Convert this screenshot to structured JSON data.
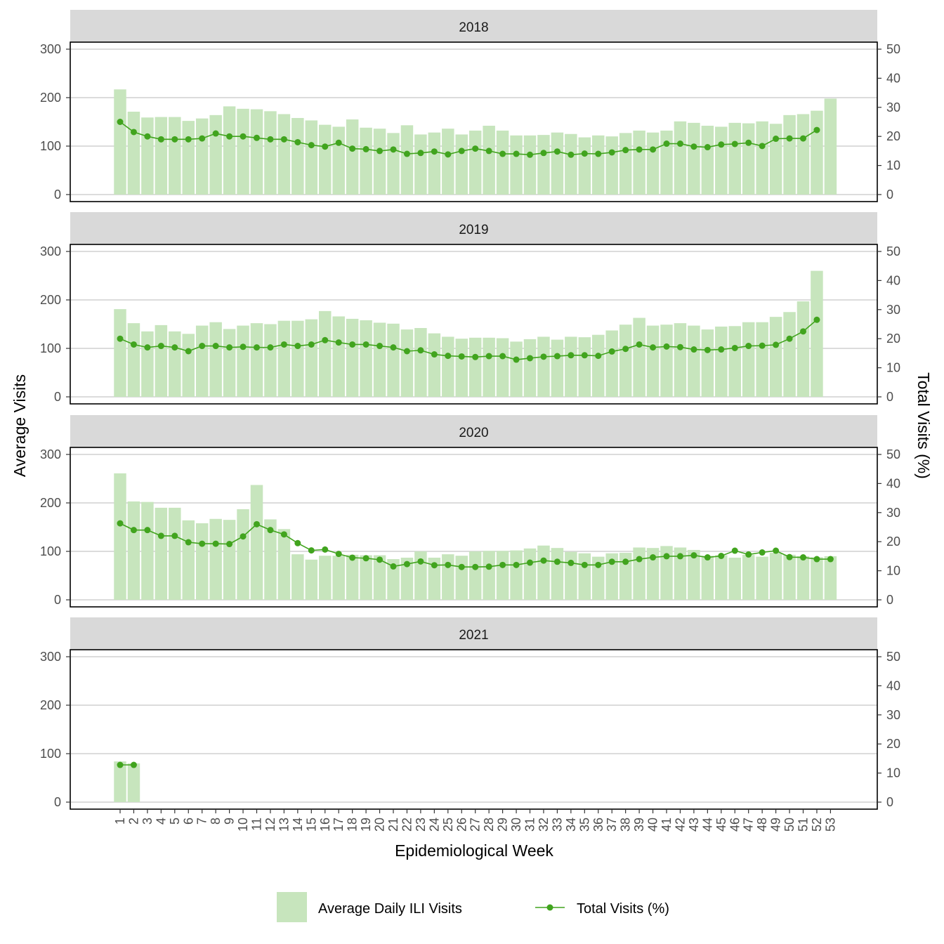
{
  "chart_data": {
    "type": "bar",
    "facet_by": "year",
    "xlabel": "Epidemiological Week",
    "ylabel": "Average Visits",
    "ylabel_right": "Total Visits (%)",
    "ylim": [
      0,
      310
    ],
    "ylim_right": [
      0,
      51.67
    ],
    "yticks": [
      0,
      100,
      200,
      300
    ],
    "yticks_right": [
      0,
      10,
      20,
      30,
      40,
      50
    ],
    "x_ticks": [
      "1",
      "2",
      "3",
      "4",
      "5",
      "6",
      "7",
      "8",
      "9",
      "10",
      "11",
      "12",
      "13",
      "14",
      "15",
      "16",
      "17",
      "18",
      "19",
      "20",
      "21",
      "22",
      "23",
      "24",
      "25",
      "26",
      "27",
      "28",
      "29",
      "30",
      "31",
      "32",
      "33",
      "34",
      "35",
      "36",
      "37",
      "38",
      "39",
      "40",
      "41",
      "42",
      "43",
      "44",
      "45",
      "46",
      "47",
      "48",
      "49",
      "50",
      "51",
      "52",
      "53"
    ],
    "grid": true,
    "legend_position": "bottom",
    "colors": {
      "bar": "#c7e5bd",
      "line": "#41a41e",
      "strip": "#d9d9d9"
    },
    "legend": [
      {
        "label": "Average Daily ILI Visits",
        "kind": "bar"
      },
      {
        "label": "Total Visits (%)",
        "kind": "line"
      }
    ],
    "panels": [
      {
        "year": "2018",
        "avg_visits": [
          217,
          171,
          159,
          160,
          160,
          152,
          157,
          164,
          182,
          177,
          176,
          172,
          166,
          158,
          153,
          144,
          140,
          155,
          138,
          136,
          127,
          143,
          124,
          128,
          136,
          124,
          132,
          142,
          132,
          122,
          122,
          123,
          128,
          125,
          118,
          122,
          120,
          127,
          132,
          128,
          132,
          151,
          148,
          142,
          140,
          148,
          147,
          151,
          146,
          164,
          166,
          173,
          198
        ],
        "total_pct": [
          25,
          21.5,
          20,
          19,
          19,
          19,
          19.3,
          21,
          20,
          20,
          19.5,
          19,
          19,
          18,
          17,
          16.5,
          17.8,
          15.8,
          15.6,
          15,
          15.5,
          14,
          14.3,
          14.8,
          13.8,
          15,
          15.8,
          15,
          14,
          14,
          13.7,
          14.3,
          14.8,
          13.7,
          14.1,
          14,
          14.5,
          15.3,
          15.5,
          15.5,
          17.5,
          17.5,
          16.5,
          16.3,
          17.2,
          17.4,
          17.8,
          16.7,
          19.2,
          19.3,
          19.3,
          22.2
        ],
        "total_pct_weeks": 52
      },
      {
        "year": "2019",
        "avg_visits": [
          181,
          152,
          135,
          148,
          135,
          130,
          147,
          154,
          140,
          147,
          152,
          150,
          157,
          157,
          160,
          177,
          166,
          161,
          158,
          153,
          151,
          139,
          142,
          131,
          124,
          120,
          122,
          122,
          121,
          114,
          119,
          124,
          118,
          124,
          123,
          128,
          137,
          149,
          163,
          147,
          149,
          152,
          147,
          139,
          145,
          146,
          154,
          154,
          165,
          175,
          197,
          260
        ],
        "total_pct": [
          20,
          18,
          17,
          17.5,
          17,
          15.7,
          17.5,
          17.5,
          17,
          17.2,
          17,
          17,
          18,
          17.5,
          18,
          19.5,
          18.7,
          18,
          18,
          17.5,
          17,
          15.7,
          16,
          14.6,
          14.1,
          13.9,
          13.7,
          14,
          14,
          12.8,
          13.3,
          13.8,
          14,
          14.3,
          14.3,
          14.1,
          15.6,
          16.5,
          18,
          17,
          17.3,
          17.1,
          16.3,
          16.1,
          16.3,
          16.8,
          17.5,
          17.6,
          17.9,
          20,
          22.5,
          26.5
        ],
        "total_pct_weeks": 52
      },
      {
        "year": "2020",
        "avg_visits": [
          261,
          203,
          202,
          190,
          190,
          164,
          158,
          167,
          165,
          187,
          237,
          166,
          146,
          94,
          83,
          91,
          91,
          93,
          92,
          92,
          84,
          87,
          100,
          87,
          94,
          91,
          100,
          101,
          101,
          102,
          106,
          112,
          107,
          99,
          96,
          89,
          96,
          97,
          108,
          107,
          111,
          108,
          103,
          91,
          92,
          87,
          93,
          89,
          97,
          93,
          90,
          88,
          90
        ],
        "total_pct": [
          26.3,
          24,
          24,
          22,
          22,
          19.8,
          19.3,
          19.3,
          19.2,
          21.8,
          26,
          24,
          22.5,
          19.5,
          17,
          17.3,
          15.8,
          14.5,
          14.3,
          13.8,
          11.5,
          12.3,
          13.2,
          11.9,
          12,
          11.3,
          11.3,
          11.4,
          12,
          12,
          12.8,
          13.5,
          13.1,
          12.7,
          12,
          12,
          13.1,
          13.1,
          14,
          14.6,
          15,
          15,
          15.3,
          14.6,
          15.1,
          16.9,
          15.6,
          16.3,
          16.9,
          14.7,
          14.6,
          14,
          14
        ],
        "total_pct_weeks": 53
      },
      {
        "year": "2021",
        "avg_visits": [
          84,
          80
        ],
        "total_pct": [
          12.8,
          12.8
        ],
        "total_pct_weeks": 2
      }
    ]
  }
}
